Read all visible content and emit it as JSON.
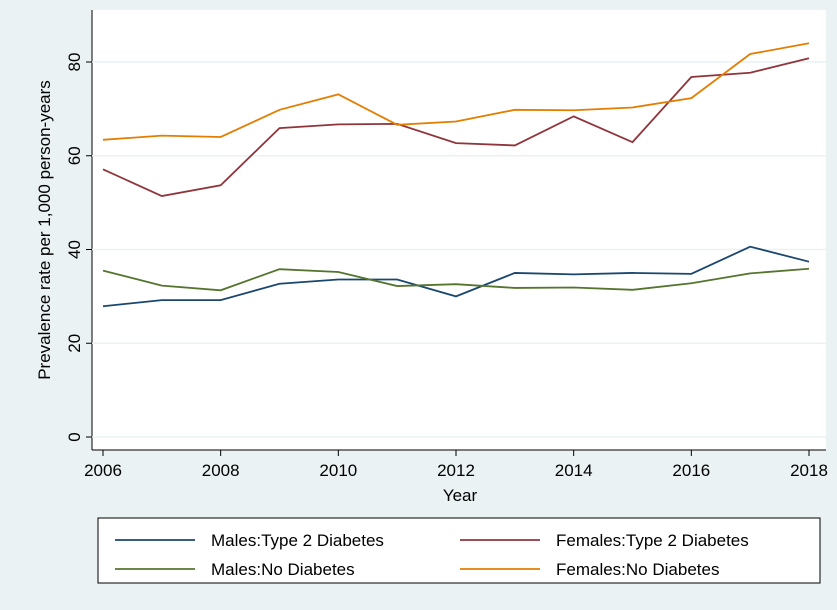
{
  "chart_data": {
    "type": "line",
    "x_label": "Year",
    "y_label": "Prevalence rate per 1,000 person-years",
    "x": [
      2006,
      2007,
      2008,
      2009,
      2010,
      2011,
      2012,
      2013,
      2014,
      2015,
      2016,
      2017,
      2018
    ],
    "xlim": [
      2006,
      2018
    ],
    "xticks": [
      2006,
      2008,
      2010,
      2012,
      2014,
      2016,
      2018
    ],
    "ylim": [
      0,
      80
    ],
    "yticks": [
      0,
      20,
      40,
      60,
      80
    ],
    "grid": true,
    "series": [
      {
        "name": "Males:Type 2 Diabetes",
        "color": "#1a476f",
        "values": [
          27.9,
          29.2,
          29.2,
          32.7,
          33.6,
          33.6,
          30.0,
          35.0,
          34.7,
          35.0,
          34.8,
          40.6,
          37.4
        ]
      },
      {
        "name": "Females:Type 2 Diabetes",
        "color": "#90353b",
        "values": [
          57.1,
          51.4,
          53.7,
          65.9,
          66.7,
          66.8,
          62.7,
          62.2,
          68.4,
          62.9,
          76.8,
          77.7,
          80.8
        ]
      },
      {
        "name": "Males:No Diabetes",
        "color": "#55752f",
        "values": [
          35.5,
          32.3,
          31.3,
          35.8,
          35.2,
          32.2,
          32.6,
          31.8,
          31.9,
          31.4,
          32.8,
          34.9,
          35.9
        ]
      },
      {
        "name": "Females:No Diabetes",
        "color": "#e37e00",
        "values": [
          63.4,
          64.3,
          64.0,
          69.8,
          73.1,
          66.6,
          67.3,
          69.8,
          69.7,
          70.3,
          72.3,
          81.7,
          84.0
        ]
      }
    ],
    "legend": "bottom"
  }
}
